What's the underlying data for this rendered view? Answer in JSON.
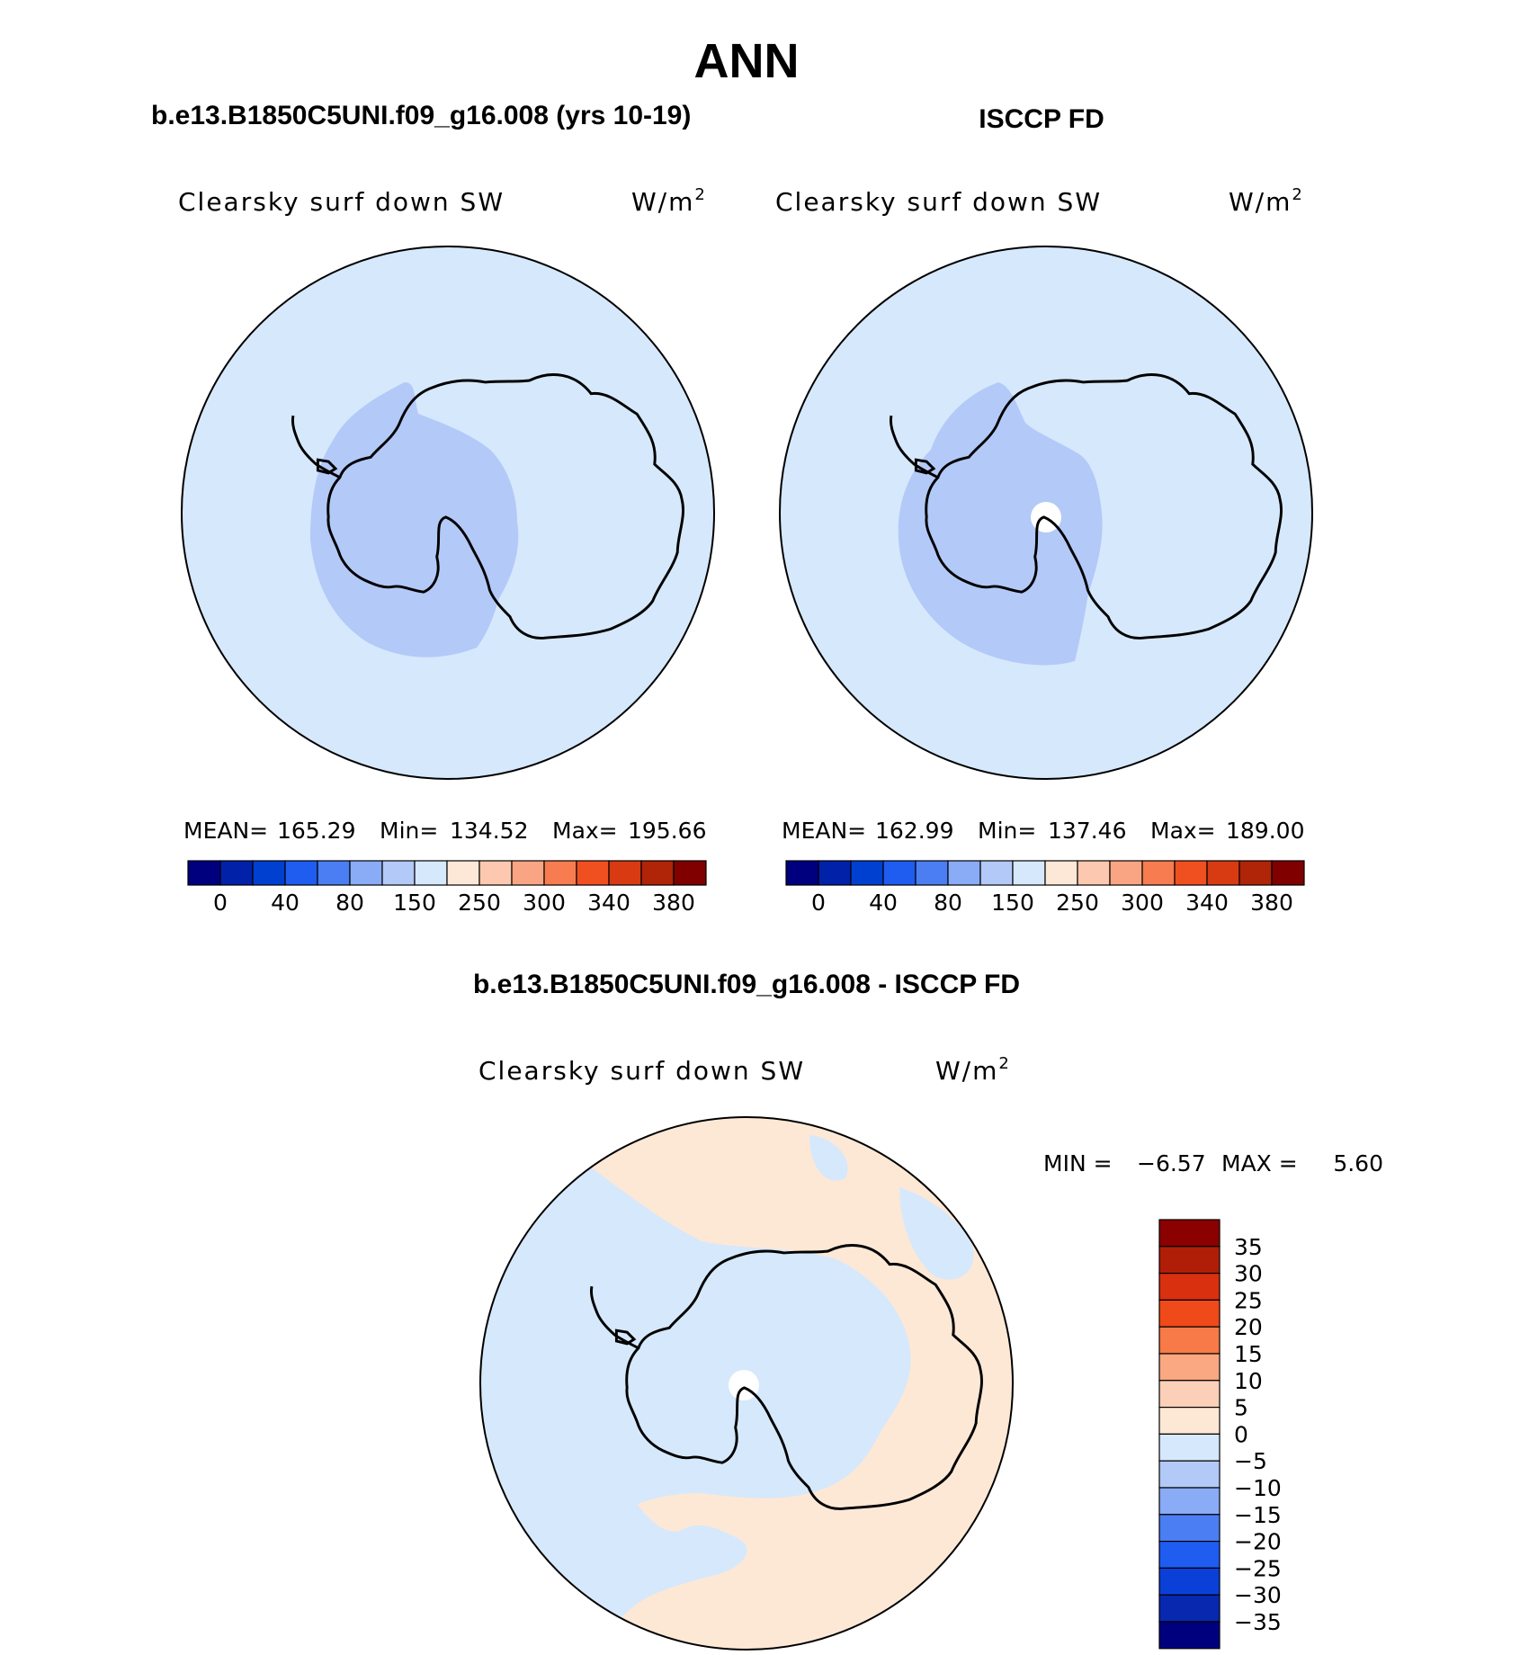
{
  "page": {
    "title": "ANN"
  },
  "panels": [
    {
      "heading": "b.e13.B1850C5UNI.f09_g16.008 (yrs 10-19)",
      "variable": "Clearsky surf down SW",
      "units_base": "W/m",
      "units_exp": "2",
      "stats": {
        "mean_label": "MEAN=",
        "mean": "165.29",
        "min_label": "Min=",
        "min": "134.52",
        "max_label": "Max=",
        "max": "195.66"
      }
    },
    {
      "heading": "ISCCP FD",
      "variable": "Clearsky surf down SW",
      "units_base": "W/m",
      "units_exp": "2",
      "stats": {
        "mean_label": "MEAN=",
        "mean": "162.99",
        "min_label": "Min=",
        "min": "137.46",
        "max_label": "Max=",
        "max": "189.00"
      }
    }
  ],
  "colorbar": {
    "colors": [
      "#00007f",
      "#0021a8",
      "#0040d0",
      "#1f5cf0",
      "#4a7ef2",
      "#8aabf5",
      "#b3c9f8",
      "#d6e8fb",
      "#fde8d8",
      "#fcc9b0",
      "#f9a584",
      "#f77c4f",
      "#f05020",
      "#d83a12",
      "#b02408",
      "#800000"
    ],
    "labels": [
      "0",
      "40",
      "80",
      "150",
      "250",
      "300",
      "340",
      "380"
    ]
  },
  "difference": {
    "heading": "b.e13.B1850C5UNI.f09_g16.008 - ISCCP FD",
    "variable": "Clearsky surf down SW",
    "units_base": "W/m",
    "units_exp": "2",
    "min_label": "MIN =",
    "min": "−6.57",
    "max_label": "MAX =",
    "max": "5.60",
    "colorbar": {
      "colors_top_to_bottom": [
        "#8b0000",
        "#b01e08",
        "#d9300f",
        "#f04a1a",
        "#f77a48",
        "#f9a882",
        "#fcd0b8",
        "#fde8d6",
        "#d6e8fb",
        "#b3c9f8",
        "#8aabf5",
        "#4a7ef2",
        "#1f5cf0",
        "#0a40d8",
        "#0828b0",
        "#00007f"
      ],
      "labels_top_to_bottom": [
        "35",
        "30",
        "25",
        "20",
        "15",
        "10",
        "5",
        "0",
        "−5",
        "−10",
        "−15",
        "−20",
        "−25",
        "−30",
        "−35"
      ]
    }
  }
}
